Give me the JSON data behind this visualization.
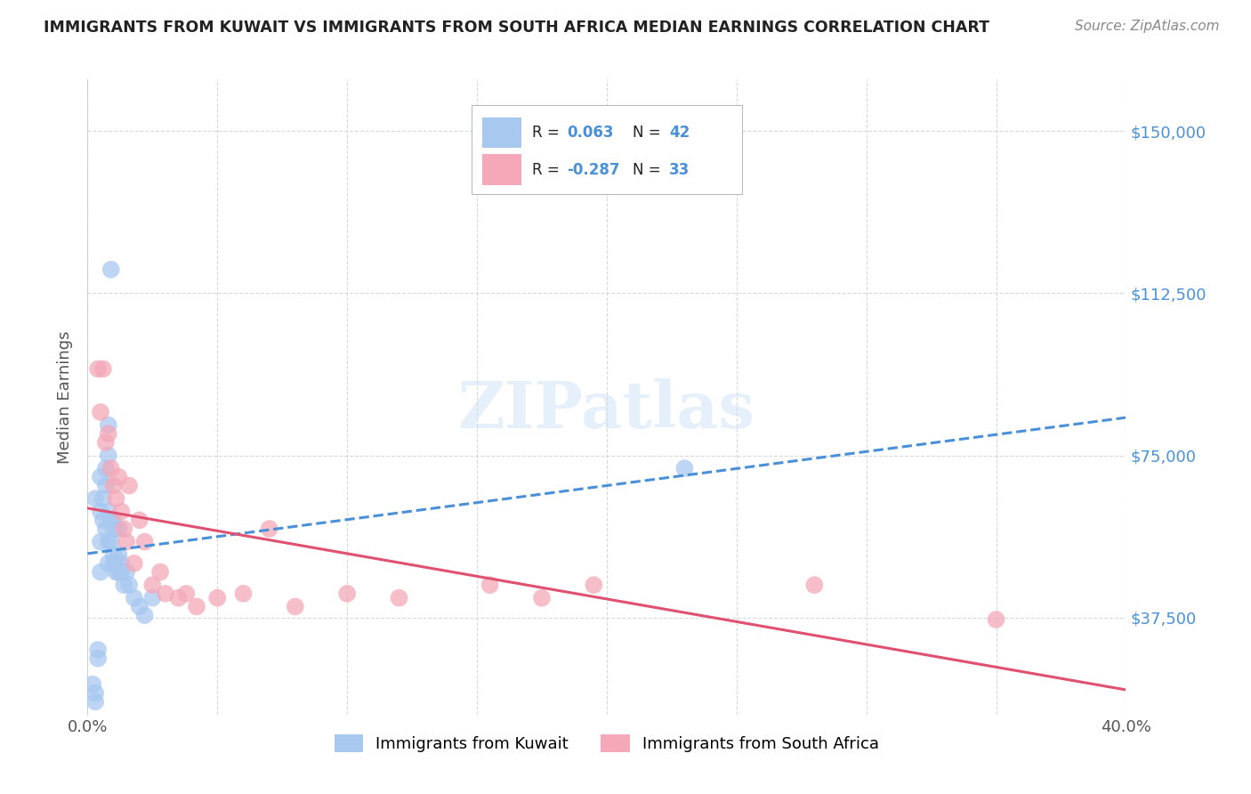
{
  "title": "IMMIGRANTS FROM KUWAIT VS IMMIGRANTS FROM SOUTH AFRICA MEDIAN EARNINGS CORRELATION CHART",
  "source": "Source: ZipAtlas.com",
  "ylabel": "Median Earnings",
  "watermark": "ZIPatlas",
  "xlim": [
    0.0,
    0.4
  ],
  "ylim": [
    15000,
    162000
  ],
  "yticks": [
    37500,
    75000,
    112500,
    150000
  ],
  "ytick_labels": [
    "$37,500",
    "$75,000",
    "$112,500",
    "$150,000"
  ],
  "xticks": [
    0.0,
    0.05,
    0.1,
    0.15,
    0.2,
    0.25,
    0.3,
    0.35,
    0.4
  ],
  "kuwait_R": "0.063",
  "kuwait_N": "42",
  "sa_R": "-0.287",
  "sa_N": "33",
  "kuwait_color": "#a8c8f0",
  "sa_color": "#f4a8b8",
  "kuwait_line_color": "#4a90d9",
  "sa_line_color": "#e05070",
  "background_color": "#ffffff",
  "grid_color": "#d0d0d0",
  "title_color": "#222222",
  "axis_color": "#555555",
  "right_axis_color": "#4a90d9",
  "kuwait_x": [
    0.002,
    0.003,
    0.003,
    0.004,
    0.004,
    0.005,
    0.005,
    0.005,
    0.006,
    0.006,
    0.007,
    0.007,
    0.007,
    0.008,
    0.008,
    0.008,
    0.008,
    0.009,
    0.009,
    0.009,
    0.01,
    0.01,
    0.01,
    0.011,
    0.011,
    0.012,
    0.012,
    0.013,
    0.013,
    0.014,
    0.015,
    0.016,
    0.018,
    0.02,
    0.022,
    0.025,
    0.003,
    0.005,
    0.008,
    0.01,
    0.012,
    0.23
  ],
  "kuwait_y": [
    22000,
    18000,
    20000,
    28000,
    30000,
    55000,
    62000,
    48000,
    65000,
    60000,
    68000,
    58000,
    72000,
    62000,
    55000,
    50000,
    82000,
    60000,
    55000,
    118000,
    58000,
    52000,
    50000,
    50000,
    48000,
    52000,
    48000,
    50000,
    48000,
    45000,
    48000,
    45000,
    42000,
    40000,
    38000,
    42000,
    65000,
    70000,
    75000,
    60000,
    58000,
    72000
  ],
  "sa_x": [
    0.004,
    0.005,
    0.006,
    0.007,
    0.008,
    0.009,
    0.01,
    0.011,
    0.012,
    0.013,
    0.014,
    0.015,
    0.016,
    0.018,
    0.02,
    0.022,
    0.025,
    0.028,
    0.03,
    0.035,
    0.038,
    0.042,
    0.05,
    0.06,
    0.07,
    0.08,
    0.1,
    0.12,
    0.155,
    0.175,
    0.195,
    0.28,
    0.35
  ],
  "sa_y": [
    95000,
    85000,
    95000,
    78000,
    80000,
    72000,
    68000,
    65000,
    70000,
    62000,
    58000,
    55000,
    68000,
    50000,
    60000,
    55000,
    45000,
    48000,
    43000,
    42000,
    43000,
    40000,
    42000,
    43000,
    58000,
    40000,
    43000,
    42000,
    45000,
    42000,
    45000,
    45000,
    37000
  ]
}
